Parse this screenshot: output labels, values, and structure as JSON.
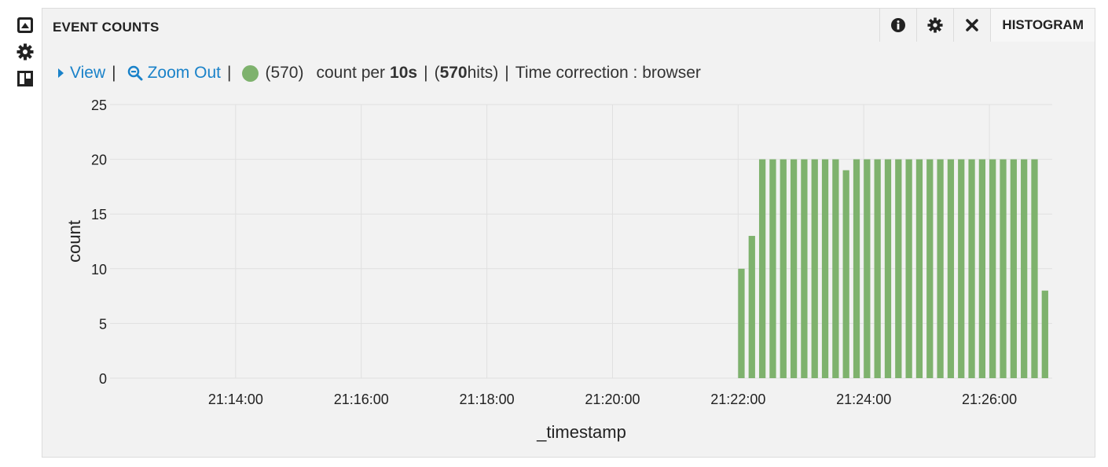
{
  "panel": {
    "title": "EVENT COUNTS",
    "type_label": "HISTOGRAM"
  },
  "toolbar_icons": [
    "info-icon",
    "gear-icon",
    "close-icon"
  ],
  "left_rail_icons": [
    "panel-icon",
    "gear-icon",
    "layout-icon"
  ],
  "legend": {
    "view_label": "View",
    "zoom_out_label": "Zoom Out",
    "series_count": "(570)",
    "count_per_prefix": "count per",
    "interval": "10s",
    "hits_prefix": "(",
    "hits_value": "570",
    "hits_suffix": " hits)",
    "time_correction": "Time correction : browser"
  },
  "colors": {
    "bar": "#7eb26d",
    "link": "#1a82c9",
    "panel_bg": "#f2f2f2"
  },
  "chart_data": {
    "type": "bar",
    "xlabel": "_timestamp",
    "ylabel": "count",
    "ylim": [
      0,
      25
    ],
    "yticks": [
      0,
      5,
      10,
      15,
      20,
      25
    ],
    "xlim": [
      "21:12:00",
      "21:27:00"
    ],
    "xticks": [
      "21:14:00",
      "21:16:00",
      "21:18:00",
      "21:20:00",
      "21:22:00",
      "21:24:00",
      "21:26:00"
    ],
    "interval_seconds": 10,
    "grid": true,
    "series": [
      {
        "x": [
          "21:22:00",
          "21:22:10",
          "21:22:20",
          "21:22:30",
          "21:22:40",
          "21:22:50",
          "21:23:00",
          "21:23:10",
          "21:23:20",
          "21:23:30",
          "21:23:40",
          "21:23:50",
          "21:24:00",
          "21:24:10",
          "21:24:20",
          "21:24:30",
          "21:24:40",
          "21:24:50",
          "21:25:00",
          "21:25:10",
          "21:25:20",
          "21:25:30",
          "21:25:40",
          "21:25:50",
          "21:26:00",
          "21:26:10",
          "21:26:20",
          "21:26:30",
          "21:26:40",
          "21:26:50"
        ],
        "values": [
          10,
          13,
          20,
          20,
          20,
          20,
          20,
          20,
          20,
          20,
          19,
          20,
          20,
          20,
          20,
          20,
          20,
          20,
          20,
          20,
          20,
          20,
          20,
          20,
          20,
          20,
          20,
          20,
          20,
          8
        ]
      }
    ]
  }
}
